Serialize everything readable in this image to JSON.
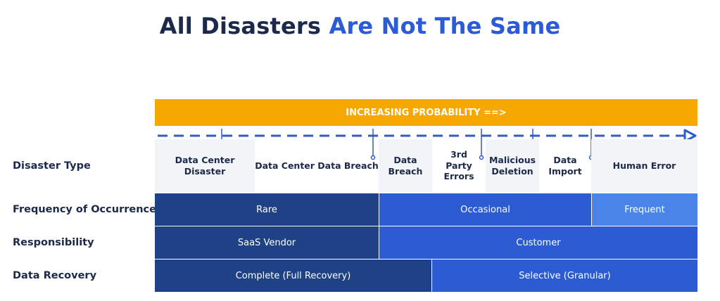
{
  "title": {
    "part1": "All Disasters ",
    "part2": "Are Not The Same"
  },
  "banner": "INCREASING PROBABILITY ==>",
  "row_labels": {
    "disaster_type": "Disaster Type",
    "frequency": "Frequency of Occurrence",
    "responsibility": "Responsibility",
    "recovery": "Data Recovery"
  },
  "disaster_types": [
    "Data Center Disaster",
    "Data Center Data Breach",
    "Data Breach",
    "3rd Party Errors",
    "Malicious Deletion",
    "Data Import",
    "Human Error"
  ],
  "frequency": [
    "Rare",
    "Occasional",
    "Frequent"
  ],
  "responsibility": [
    "SaaS Vendor",
    "Customer"
  ],
  "recovery": [
    "Complete (Full Recovery)",
    "Selective (Granular)"
  ],
  "colors": {
    "banner": "#f7a800",
    "dark_blue": "#1e4285",
    "mid_blue": "#2d5bd2",
    "light_blue": "#4a84e8",
    "title_dark": "#1b2a4a",
    "title_accent": "#2b5bd7"
  }
}
